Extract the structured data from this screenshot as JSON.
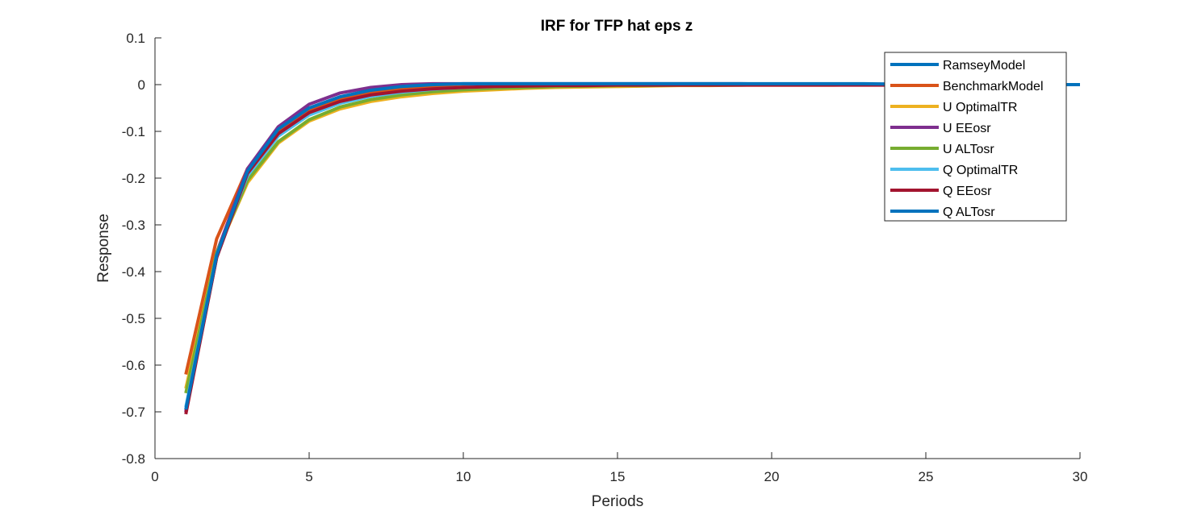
{
  "chart_data": {
    "type": "line",
    "title": "IRF for TFP hat eps z",
    "xlabel": "Periods",
    "ylabel": "Response",
    "xlim": [
      0,
      30
    ],
    "ylim": [
      -0.8,
      0.1
    ],
    "xticks": [
      0,
      5,
      10,
      15,
      20,
      25,
      30
    ],
    "yticks": [
      0.1,
      0,
      -0.1,
      -0.2,
      -0.3,
      -0.4,
      -0.5,
      -0.6,
      -0.7,
      -0.8
    ],
    "ytick_labels": [
      "0.1",
      "0",
      "-0.1",
      "-0.2",
      "-0.3",
      "-0.4",
      "-0.5",
      "-0.6",
      "-0.7",
      "-0.8"
    ],
    "xtick_labels": [
      "0",
      "5",
      "10",
      "15",
      "20",
      "25",
      "30"
    ],
    "grid": false,
    "legend_position": "top-right",
    "x": [
      1,
      2,
      3,
      4,
      5,
      6,
      7,
      8,
      9,
      10,
      11,
      12,
      13,
      14,
      15,
      16,
      17,
      18,
      19,
      20,
      21,
      22,
      23,
      24,
      25,
      26,
      27,
      28,
      29,
      30
    ],
    "series": [
      {
        "name": "RamseyModel",
        "color": "#0072BD",
        "values": [
          -0.7,
          -0.37,
          -0.19,
          -0.1,
          -0.055,
          -0.03,
          -0.016,
          -0.008,
          -0.004,
          -0.002,
          -0.001,
          0.0,
          0.0,
          0.0,
          0.0,
          0.0,
          0.0,
          0.0,
          0.0,
          0.0,
          0.0,
          0.0,
          0.0,
          0.0,
          0.0,
          0.0,
          0.0,
          0.0,
          0.0,
          0.0
        ]
      },
      {
        "name": "BenchmarkModel",
        "color": "#D95319",
        "values": [
          -0.62,
          -0.33,
          -0.18,
          -0.1,
          -0.056,
          -0.032,
          -0.018,
          -0.01,
          -0.006,
          -0.003,
          -0.002,
          -0.001,
          0.0,
          0.0,
          0.0,
          0.0,
          0.0,
          0.0,
          0.0,
          0.0,
          0.0,
          0.0,
          0.0,
          0.0,
          0.0,
          0.0,
          0.0,
          0.0,
          0.0,
          0.0
        ]
      },
      {
        "name": "U OptimalTR",
        "color": "#EDB120",
        "values": [
          -0.65,
          -0.36,
          -0.21,
          -0.125,
          -0.078,
          -0.052,
          -0.036,
          -0.026,
          -0.019,
          -0.014,
          -0.011,
          -0.008,
          -0.006,
          -0.005,
          -0.004,
          -0.003,
          -0.002,
          -0.002,
          -0.001,
          -0.001,
          -0.001,
          -0.001,
          0.0,
          0.0,
          0.0,
          0.0,
          0.0,
          0.0,
          0.0,
          0.0
        ]
      },
      {
        "name": "U EEosr",
        "color": "#7E2F8E",
        "values": [
          -0.7,
          -0.36,
          -0.18,
          -0.09,
          -0.042,
          -0.018,
          -0.006,
          0.0,
          0.002,
          0.002,
          0.002,
          0.002,
          0.002,
          0.002,
          0.002,
          0.002,
          0.002,
          0.002,
          0.002,
          0.001,
          0.001,
          0.001,
          0.001,
          0.001,
          0.001,
          0.001,
          0.0,
          0.0,
          0.0,
          0.0
        ]
      },
      {
        "name": "U ALTosr",
        "color": "#77AC30",
        "values": [
          -0.66,
          -0.36,
          -0.205,
          -0.122,
          -0.075,
          -0.048,
          -0.032,
          -0.022,
          -0.015,
          -0.011,
          -0.008,
          -0.006,
          -0.004,
          -0.003,
          -0.002,
          -0.002,
          -0.001,
          -0.001,
          -0.001,
          0.0,
          0.0,
          0.0,
          0.0,
          0.0,
          0.0,
          0.0,
          0.0,
          0.0,
          0.0,
          0.0
        ]
      },
      {
        "name": "Q OptimalTR",
        "color": "#4DBEEE",
        "values": [
          -0.69,
          -0.365,
          -0.195,
          -0.11,
          -0.065,
          -0.04,
          -0.025,
          -0.016,
          -0.01,
          -0.006,
          -0.004,
          -0.002,
          -0.001,
          0.0,
          0.0,
          0.0,
          0.0,
          0.0,
          0.0,
          0.0,
          0.0,
          0.0,
          0.0,
          0.0,
          0.0,
          0.0,
          0.0,
          0.0,
          0.0,
          0.0
        ]
      },
      {
        "name": "Q EEosr",
        "color": "#A2142F",
        "values": [
          -0.705,
          -0.37,
          -0.19,
          -0.105,
          -0.06,
          -0.036,
          -0.022,
          -0.014,
          -0.009,
          -0.006,
          -0.004,
          -0.003,
          -0.002,
          -0.002,
          -0.001,
          -0.001,
          -0.001,
          -0.001,
          -0.001,
          -0.001,
          -0.001,
          -0.001,
          -0.001,
          -0.001,
          -0.001,
          -0.001,
          -0.001,
          -0.001,
          0.0,
          0.0
        ]
      },
      {
        "name": "Q ALTosr",
        "color": "#0072BD",
        "values": [
          -0.695,
          -0.365,
          -0.185,
          -0.095,
          -0.05,
          -0.026,
          -0.012,
          -0.004,
          0.0,
          0.002,
          0.002,
          0.002,
          0.002,
          0.002,
          0.002,
          0.002,
          0.002,
          0.002,
          0.002,
          0.002,
          0.002,
          0.002,
          0.002,
          0.001,
          0.001,
          0.001,
          0.001,
          0.0,
          0.0,
          0.0
        ]
      }
    ]
  }
}
